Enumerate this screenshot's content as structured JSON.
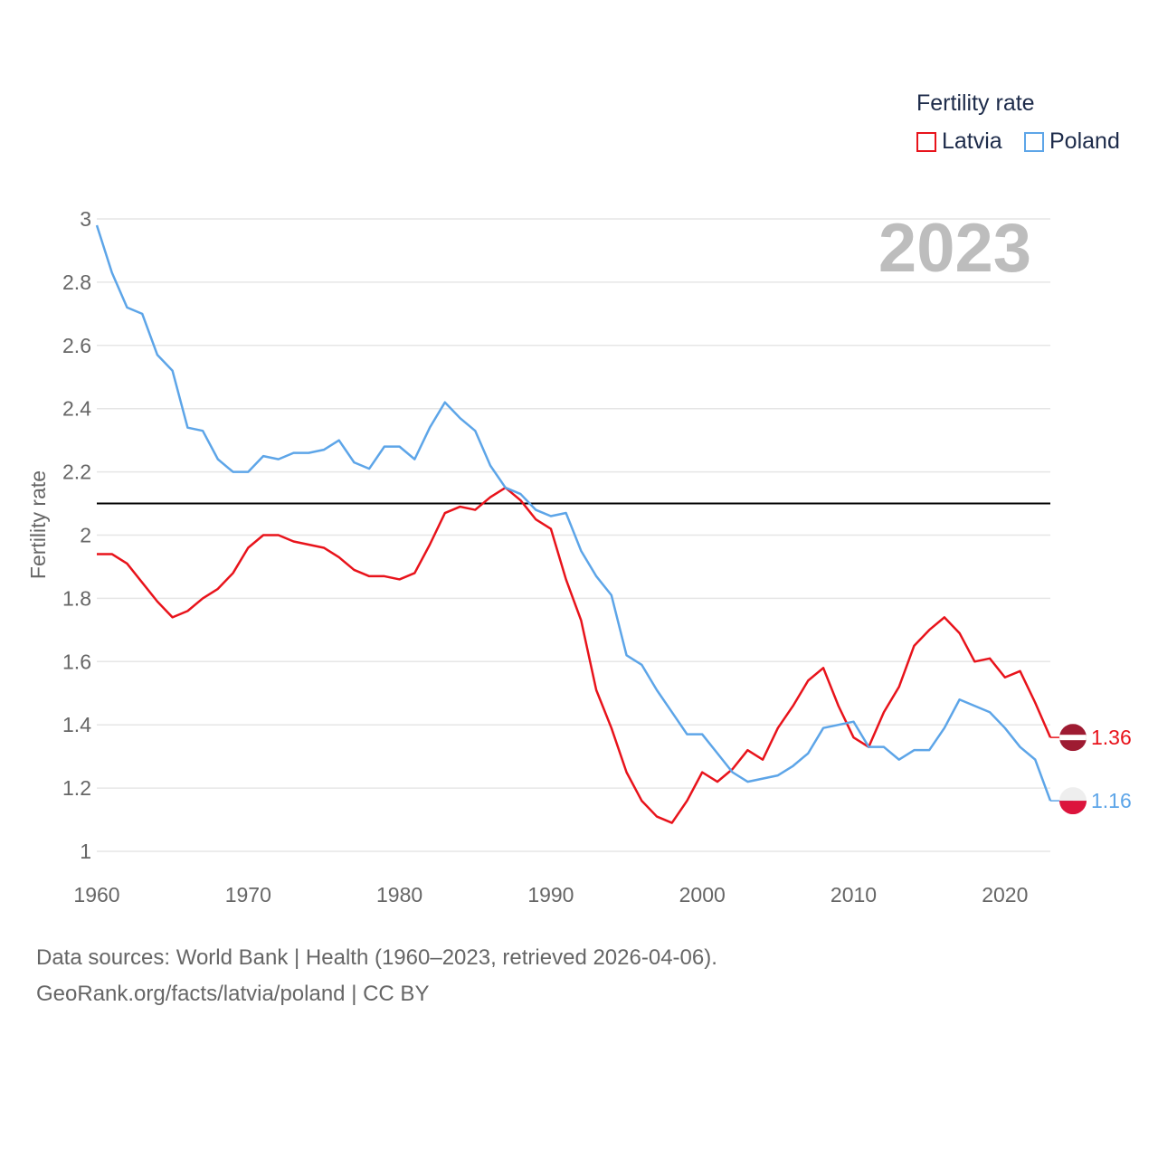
{
  "legend": {
    "title": "Fertility rate",
    "items": [
      {
        "label": "Latvia",
        "color": "#e8131b"
      },
      {
        "label": "Poland",
        "color": "#5da5e8"
      }
    ]
  },
  "footer": {
    "line1": "Data sources: World Bank | Health (1960–2023, retrieved 2026-04-06).",
    "line2": "GeoRank.org/facts/latvia/poland | CC BY"
  },
  "chart_data": {
    "type": "line",
    "title": "Fertility rate",
    "year_label": "2023",
    "xlabel": "",
    "ylabel": "Fertility rate",
    "xlim": [
      1960,
      2023
    ],
    "ylim": [
      1,
      3
    ],
    "xticks": [
      1960,
      1970,
      1980,
      1990,
      2000,
      2010,
      2020
    ],
    "yticks": [
      1,
      1.2,
      1.4,
      1.6,
      1.8,
      2,
      2.2,
      2.4,
      2.6,
      2.8,
      3
    ],
    "reference_line": 2.1,
    "x": [
      1960,
      1961,
      1962,
      1963,
      1964,
      1965,
      1966,
      1967,
      1968,
      1969,
      1970,
      1971,
      1972,
      1973,
      1974,
      1975,
      1976,
      1977,
      1978,
      1979,
      1980,
      1981,
      1982,
      1983,
      1984,
      1985,
      1986,
      1987,
      1988,
      1989,
      1990,
      1991,
      1992,
      1993,
      1994,
      1995,
      1996,
      1997,
      1998,
      1999,
      2000,
      2001,
      2002,
      2003,
      2004,
      2005,
      2006,
      2007,
      2008,
      2009,
      2010,
      2011,
      2012,
      2013,
      2014,
      2015,
      2016,
      2017,
      2018,
      2019,
      2020,
      2021,
      2022,
      2023
    ],
    "series": [
      {
        "name": "Latvia",
        "color": "#e8131b",
        "end_label": "1.36",
        "values": [
          1.94,
          1.94,
          1.91,
          1.85,
          1.79,
          1.74,
          1.76,
          1.8,
          1.83,
          1.88,
          1.96,
          2.0,
          2.0,
          1.98,
          1.97,
          1.96,
          1.93,
          1.89,
          1.87,
          1.87,
          1.86,
          1.88,
          1.97,
          2.07,
          2.09,
          2.08,
          2.12,
          2.15,
          2.11,
          2.05,
          2.02,
          1.86,
          1.73,
          1.51,
          1.39,
          1.25,
          1.16,
          1.11,
          1.09,
          1.16,
          1.25,
          1.22,
          1.26,
          1.32,
          1.29,
          1.39,
          1.46,
          1.54,
          1.58,
          1.46,
          1.36,
          1.33,
          1.44,
          1.52,
          1.65,
          1.7,
          1.74,
          1.69,
          1.6,
          1.61,
          1.55,
          1.57,
          1.47,
          1.36
        ]
      },
      {
        "name": "Poland",
        "color": "#5da5e8",
        "end_label": "1.16",
        "values": [
          2.98,
          2.83,
          2.72,
          2.7,
          2.57,
          2.52,
          2.34,
          2.33,
          2.24,
          2.2,
          2.2,
          2.25,
          2.24,
          2.26,
          2.26,
          2.27,
          2.3,
          2.23,
          2.21,
          2.28,
          2.28,
          2.24,
          2.34,
          2.42,
          2.37,
          2.33,
          2.22,
          2.15,
          2.13,
          2.08,
          2.06,
          2.07,
          1.95,
          1.87,
          1.81,
          1.62,
          1.59,
          1.51,
          1.44,
          1.37,
          1.37,
          1.31,
          1.25,
          1.22,
          1.23,
          1.24,
          1.27,
          1.31,
          1.39,
          1.4,
          1.41,
          1.33,
          1.33,
          1.29,
          1.32,
          1.32,
          1.39,
          1.48,
          1.46,
          1.44,
          1.39,
          1.33,
          1.29,
          1.16
        ]
      }
    ]
  }
}
